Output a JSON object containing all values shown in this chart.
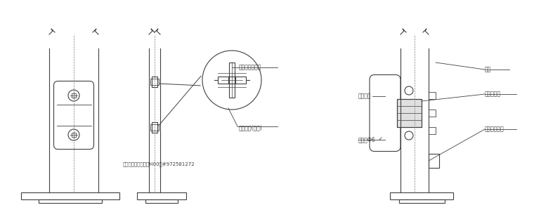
{
  "bg_color": "#ffffff",
  "line_color": "#404040",
  "text_color": "#404040",
  "fig_width": 7.6,
  "fig_height": 3.09,
  "dpi": 100,
  "labels": {
    "peidianmen_fangshui": "配电门盖(防水)",
    "yuantounei": "圆头内三角螺丝",
    "company": "中国市政工程电气资H00册#972581272",
    "shiye": "活叶",
    "peidianmen": "配电门盖",
    "lujiedengxianhejie": "路灯接线盒",
    "mensuosuo": "门锁索Φ6",
    "zhuanyongjiedizhuang": "专用接地螺栓"
  }
}
